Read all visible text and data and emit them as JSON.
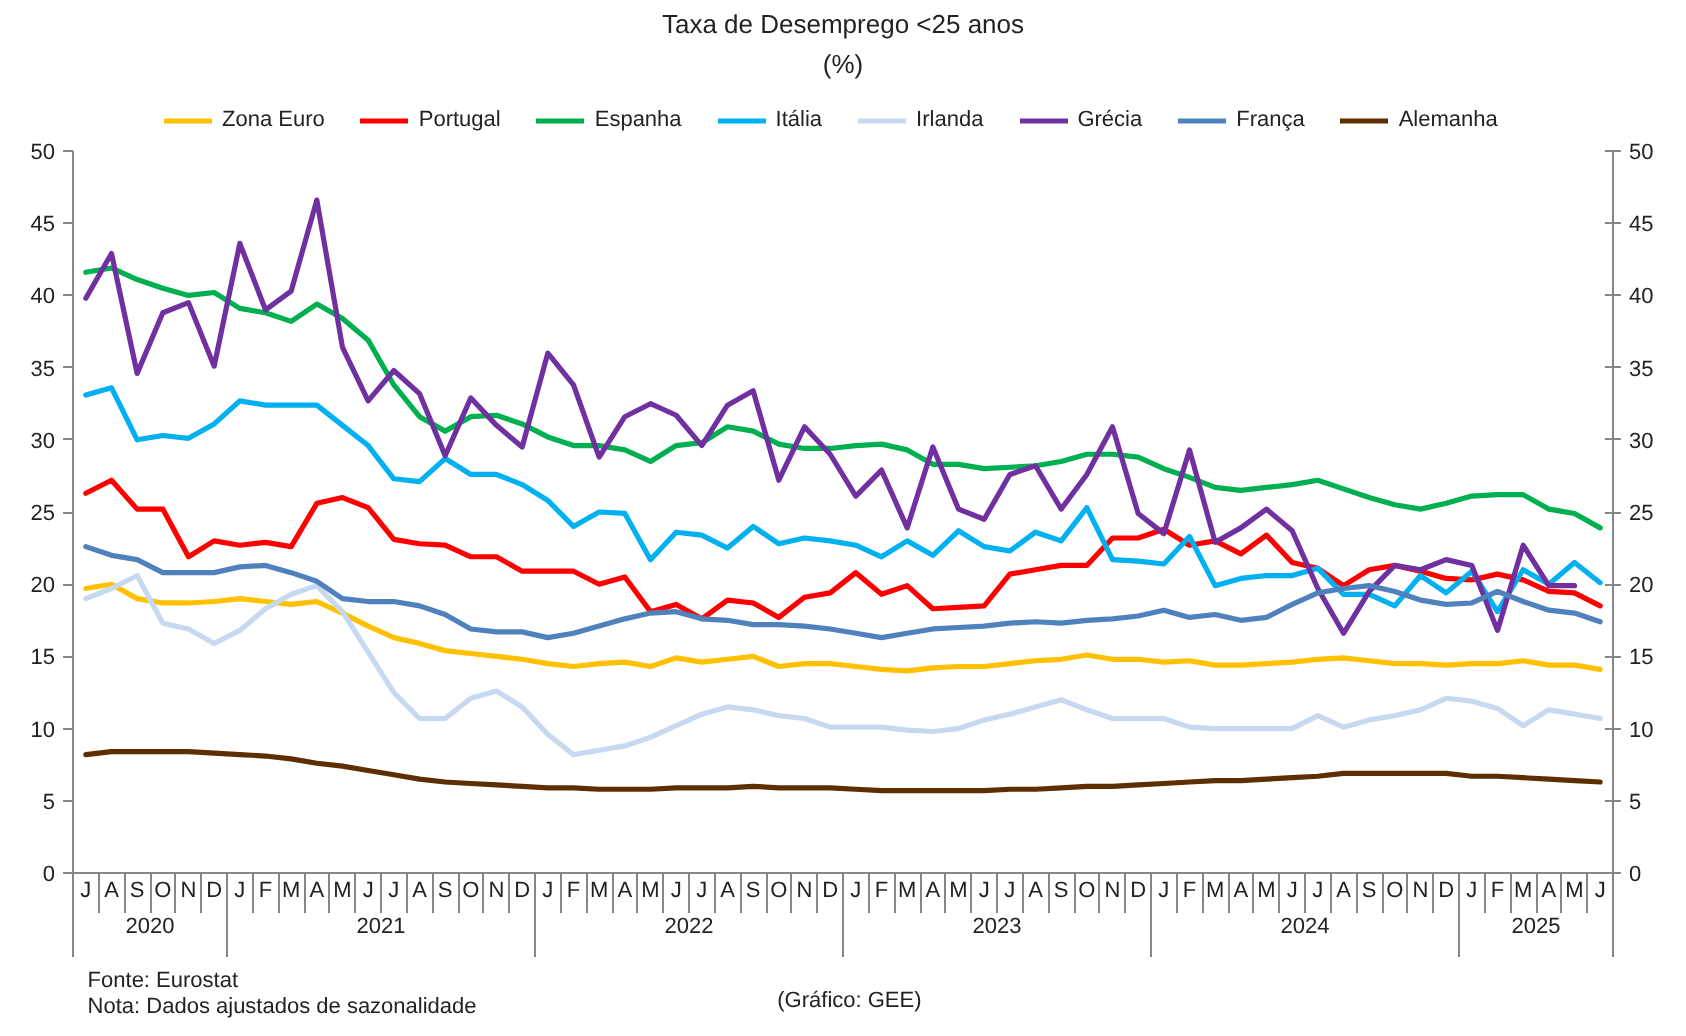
{
  "chart_data": {
    "type": "line",
    "title": "Taxa de Desemprego <25 anos",
    "subtitle": "(%)",
    "categories": [
      "J",
      "A",
      "S",
      "O",
      "N",
      "D",
      "J",
      "F",
      "M",
      "A",
      "M",
      "J",
      "J",
      "A",
      "S",
      "O",
      "N",
      "D",
      "J",
      "F",
      "M",
      "A",
      "M",
      "J",
      "J",
      "A",
      "S",
      "O",
      "N",
      "D",
      "J",
      "F",
      "M",
      "A",
      "M",
      "J",
      "J",
      "A",
      "S",
      "O",
      "N",
      "D",
      "J",
      "F",
      "M",
      "A",
      "M",
      "J",
      "J",
      "A",
      "S",
      "O",
      "N",
      "D",
      "J",
      "F",
      "M",
      "A",
      "M",
      "J"
    ],
    "x2lim": [
      2020.0,
      2025.0
    ],
    "x2ticks": [
      {
        "value": 2020.25,
        "label": "2020"
      },
      2021,
      2022,
      2023,
      2024,
      {
        "value": 2024.75,
        "label": "2025"
      }
    ],
    "ylim": [
      0,
      50
    ],
    "yticks": [
      0,
      5,
      10,
      15,
      20,
      25,
      30,
      35,
      40,
      45,
      50
    ],
    "y2lim": [
      0,
      50
    ],
    "y2ticks": [
      0,
      5,
      10,
      15,
      20,
      25,
      30,
      35,
      40,
      45,
      50
    ],
    "legend": "top",
    "series": [
      {
        "name": "Zona Euro",
        "color": "#ffc000",
        "values": [
          19.7,
          20.0,
          19.0,
          18.7,
          18.7,
          18.8,
          19.0,
          18.8,
          18.6,
          18.8,
          18.0,
          17.1,
          16.3,
          15.9,
          15.4,
          15.2,
          15.0,
          14.8,
          14.5,
          14.3,
          14.5,
          14.6,
          14.3,
          14.9,
          14.6,
          14.8,
          15.0,
          14.3,
          14.5,
          14.5,
          14.3,
          14.1,
          14.0,
          14.2,
          14.3,
          14.3,
          14.5,
          14.7,
          14.8,
          15.1,
          14.8,
          14.8,
          14.6,
          14.7,
          14.4,
          14.4,
          14.5,
          14.6,
          14.8,
          14.9,
          14.7,
          14.5,
          14.5,
          14.4,
          14.5,
          14.5,
          14.7,
          14.4,
          14.4,
          14.1
        ]
      },
      {
        "name": "Portugal",
        "color": "#ff0000",
        "values": [
          26.3,
          27.2,
          25.2,
          25.2,
          21.9,
          23.0,
          22.7,
          22.9,
          22.6,
          25.6,
          26.0,
          25.3,
          23.1,
          22.8,
          22.7,
          21.9,
          21.9,
          20.9,
          20.9,
          20.9,
          20.0,
          20.5,
          18.1,
          18.6,
          17.6,
          18.9,
          18.7,
          17.7,
          19.1,
          19.4,
          20.8,
          19.3,
          19.9,
          18.3,
          18.4,
          18.5,
          20.7,
          21.0,
          21.3,
          21.3,
          23.2,
          23.2,
          23.8,
          22.7,
          23.0,
          22.1,
          23.4,
          21.5,
          21.1,
          19.9,
          21.0,
          21.3,
          20.9,
          20.4,
          20.3,
          20.7,
          20.3,
          19.5,
          19.4,
          18.5
        ]
      },
      {
        "name": "Espanha",
        "color": "#00b050",
        "values": [
          41.6,
          41.9,
          41.1,
          40.5,
          40.0,
          40.2,
          39.1,
          38.8,
          38.2,
          39.4,
          38.4,
          36.9,
          33.8,
          31.6,
          30.6,
          31.6,
          31.7,
          31.1,
          30.2,
          29.6,
          29.6,
          29.3,
          28.5,
          29.6,
          29.8,
          30.9,
          30.6,
          29.7,
          29.4,
          29.4,
          29.6,
          29.7,
          29.3,
          28.3,
          28.3,
          28.0,
          28.1,
          28.2,
          28.5,
          29.0,
          29.0,
          28.8,
          28.0,
          27.4,
          26.7,
          26.5,
          26.7,
          26.9,
          27.2,
          26.6,
          26.0,
          25.5,
          25.2,
          25.6,
          26.1,
          26.2,
          26.2,
          25.2,
          24.9,
          23.9
        ]
      },
      {
        "name": "Itália",
        "color": "#00b0f0",
        "values": [
          33.1,
          33.6,
          30.0,
          30.3,
          30.1,
          31.1,
          32.7,
          32.4,
          32.4,
          32.4,
          31.0,
          29.6,
          27.3,
          27.1,
          28.7,
          27.6,
          27.6,
          26.9,
          25.8,
          24.0,
          25.0,
          24.9,
          21.7,
          23.6,
          23.4,
          22.5,
          24.0,
          22.8,
          23.2,
          23.0,
          22.7,
          21.9,
          23.0,
          22.0,
          23.7,
          22.6,
          22.3,
          23.6,
          23.0,
          25.3,
          21.7,
          21.6,
          21.4,
          23.3,
          19.9,
          20.4,
          20.6,
          20.6,
          21.1,
          19.3,
          19.3,
          18.5,
          20.6,
          19.4,
          20.9,
          18.1,
          21.0,
          20.0,
          21.5,
          20.1
        ]
      },
      {
        "name": "Irlanda",
        "color": "#c6d9f1",
        "values": [
          19.0,
          19.7,
          20.6,
          17.3,
          16.9,
          15.9,
          16.8,
          18.3,
          19.3,
          19.9,
          18.1,
          15.3,
          12.5,
          10.7,
          10.7,
          12.1,
          12.6,
          11.5,
          9.6,
          8.2,
          8.5,
          8.8,
          9.4,
          10.2,
          11.0,
          11.5,
          11.3,
          10.9,
          10.7,
          10.1,
          10.1,
          10.1,
          9.9,
          9.8,
          10.0,
          10.6,
          11.0,
          11.5,
          12.0,
          11.3,
          10.7,
          10.7,
          10.7,
          10.1,
          10.0,
          10.0,
          10.0,
          10.0,
          10.9,
          10.1,
          10.6,
          10.9,
          11.3,
          12.1,
          11.9,
          11.4,
          10.2,
          11.3,
          11.0,
          10.7
        ]
      },
      {
        "name": "Grécia",
        "color": "#7030a0",
        "values": [
          39.8,
          42.9,
          34.6,
          38.8,
          39.5,
          35.1,
          43.6,
          39.0,
          40.3,
          46.6,
          36.4,
          32.7,
          34.8,
          33.2,
          28.9,
          32.9,
          31.0,
          29.5,
          36.0,
          33.8,
          28.8,
          31.6,
          32.5,
          31.7,
          29.6,
          32.4,
          33.4,
          27.2,
          30.9,
          29.0,
          26.1,
          27.9,
          23.9,
          29.5,
          25.2,
          24.5,
          27.6,
          28.2,
          25.2,
          27.6,
          30.9,
          24.9,
          23.5,
          29.3,
          22.9,
          23.9,
          25.2,
          23.7,
          19.7,
          16.6,
          19.5,
          21.3,
          21.0,
          21.7,
          21.3,
          16.8,
          22.7,
          19.9,
          19.9,
          null
        ]
      },
      {
        "name": "França",
        "color": "#4f81bd",
        "values": [
          22.6,
          22.0,
          21.7,
          20.8,
          20.8,
          20.8,
          21.2,
          21.3,
          20.8,
          20.2,
          19.0,
          18.8,
          18.8,
          18.5,
          17.9,
          16.9,
          16.7,
          16.7,
          16.3,
          16.6,
          17.1,
          17.6,
          18.0,
          18.1,
          17.6,
          17.5,
          17.2,
          17.2,
          17.1,
          16.9,
          16.6,
          16.3,
          16.6,
          16.9,
          17.0,
          17.1,
          17.3,
          17.4,
          17.3,
          17.5,
          17.6,
          17.8,
          18.2,
          17.7,
          17.9,
          17.5,
          17.7,
          18.6,
          19.4,
          19.7,
          19.9,
          19.5,
          18.9,
          18.6,
          18.7,
          19.5,
          18.8,
          18.2,
          18.0,
          17.4
        ]
      },
      {
        "name": "Alemanha",
        "color": "#5c2e00",
        "values": [
          8.2,
          8.4,
          8.4,
          8.4,
          8.4,
          8.3,
          8.2,
          8.1,
          7.9,
          7.6,
          7.4,
          7.1,
          6.8,
          6.5,
          6.3,
          6.2,
          6.1,
          6.0,
          5.9,
          5.9,
          5.8,
          5.8,
          5.8,
          5.9,
          5.9,
          5.9,
          6.0,
          5.9,
          5.9,
          5.9,
          5.8,
          5.7,
          5.7,
          5.7,
          5.7,
          5.7,
          5.8,
          5.8,
          5.9,
          6.0,
          6.0,
          6.1,
          6.2,
          6.3,
          6.4,
          6.4,
          6.5,
          6.6,
          6.7,
          6.9,
          6.9,
          6.9,
          6.9,
          6.9,
          6.7,
          6.7,
          6.6,
          6.5,
          6.4,
          6.3
        ]
      }
    ],
    "annotations": [
      "Fonte: Eurostat",
      "Nota: Dados ajustados de sazonalidade",
      "(Gráfico: GEE)"
    ]
  }
}
